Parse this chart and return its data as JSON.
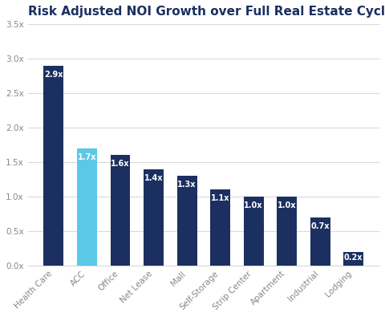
{
  "title": "Risk Adjusted NOI Growth over Full Real Estate Cycle",
  "categories": [
    "Health Care",
    "ACC",
    "Office",
    "Net Lease",
    "Mall",
    "Self-Storage",
    "Strip Center",
    "Apartment",
    "Industrial",
    "Lodging"
  ],
  "values": [
    2.9,
    1.7,
    1.6,
    1.4,
    1.3,
    1.1,
    1.0,
    1.0,
    0.7,
    0.2
  ],
  "labels": [
    "2.9x",
    "1.7x",
    "1.6x",
    "1.4x",
    "1.3x",
    "1.1x",
    "1.0x",
    "1.0x",
    "0.7x",
    "0.2x"
  ],
  "bar_colors": [
    "#1b3060",
    "#5bc8e8",
    "#1b3060",
    "#1b3060",
    "#1b3060",
    "#1b3060",
    "#1b3060",
    "#1b3060",
    "#1b3060",
    "#1b3060"
  ],
  "ylim": [
    0,
    3.5
  ],
  "yticks": [
    0.0,
    0.5,
    1.0,
    1.5,
    2.0,
    2.5,
    3.0,
    3.5
  ],
  "ytick_labels": [
    "0.0x",
    "0.5x",
    "1.0x",
    "1.5x",
    "2.0x",
    "2.5x",
    "3.0x",
    "3.5x"
  ],
  "background_color": "#ffffff",
  "title_fontsize": 11,
  "label_fontsize": 7,
  "tick_fontsize": 7.5,
  "title_color": "#1b3060",
  "tick_color": "#888888",
  "grid_color": "#d9d9d9"
}
